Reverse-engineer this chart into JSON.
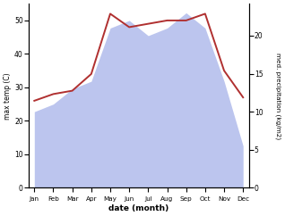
{
  "months": [
    "Jan",
    "Feb",
    "Mar",
    "Apr",
    "May",
    "Jun",
    "Jul",
    "Aug",
    "Sep",
    "Oct",
    "Nov",
    "Dec"
  ],
  "temp_max": [
    26,
    28,
    29,
    34,
    52,
    48,
    49,
    50,
    50,
    52,
    35,
    27
  ],
  "precip_kg": [
    10,
    11,
    13,
    14,
    21,
    22,
    20,
    21,
    23,
    21,
    14,
    5.5
  ],
  "temp_ylim": [
    0,
    55
  ],
  "precip_ylim": [
    0,
    24.2
  ],
  "temp_color": "#b03030",
  "precip_fill_color": "#bcc5ee",
  "ylabel_left": "max temp (C)",
  "ylabel_right": "med. precipitation (kg/m2)",
  "xlabel": "date (month)",
  "temp_yticks": [
    0,
    10,
    20,
    30,
    40,
    50
  ],
  "precip_yticks": [
    0,
    5,
    10,
    15,
    20
  ],
  "background_color": "#ffffff",
  "figwidth": 3.18,
  "figheight": 2.42,
  "dpi": 100
}
